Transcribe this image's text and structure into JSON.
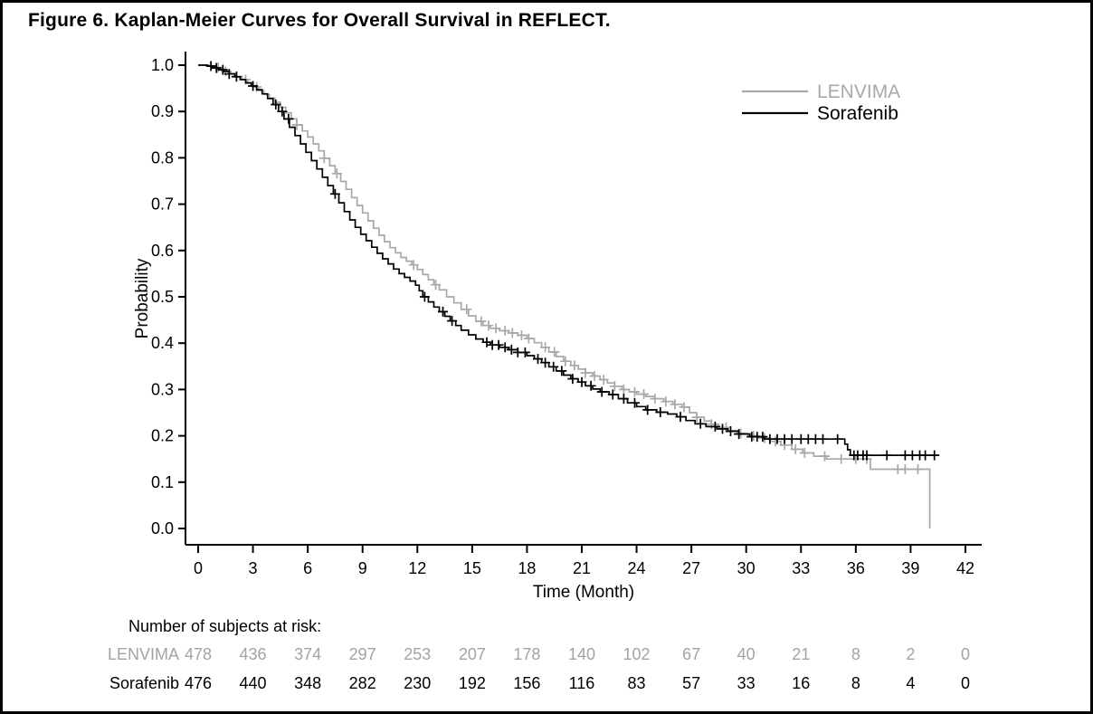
{
  "figure_title": "Figure 6. Kaplan-Meier Curves for Overall Survival in REFLECT.",
  "chart_data": {
    "type": "line",
    "subtype": "kaplan_meier_step",
    "title": "Figure 6. Kaplan-Meier Curves for Overall Survival in REFLECT.",
    "xlabel": "Time (Month)",
    "ylabel": "Probability",
    "xlim": [
      0,
      42
    ],
    "ylim": [
      0.0,
      1.0
    ],
    "grid": "off",
    "x_ticks": [
      0,
      3,
      6,
      9,
      12,
      15,
      18,
      21,
      24,
      27,
      30,
      33,
      36,
      39,
      42
    ],
    "y_tick_labels": [
      "1.0",
      "0.9",
      "0.8",
      "0.7",
      "0.6",
      "0.5",
      "0.4",
      "0.3",
      "0.2",
      "0.1",
      "0.0"
    ],
    "legend": {
      "position": "top-right",
      "entries": [
        {
          "label": "LENVIMA",
          "color": "#a8a8a8"
        },
        {
          "label": "Sorafenib",
          "color": "#000000"
        }
      ]
    },
    "series": [
      {
        "name": "LENVIMA",
        "color": "#a8a8a8",
        "steps": [
          [
            0,
            1.0
          ],
          [
            0.6,
            0.998
          ],
          [
            0.9,
            0.995
          ],
          [
            1.2,
            0.991
          ],
          [
            1.5,
            0.987
          ],
          [
            1.8,
            0.982
          ],
          [
            2.1,
            0.976
          ],
          [
            2.4,
            0.969
          ],
          [
            2.7,
            0.961
          ],
          [
            3.0,
            0.953
          ],
          [
            3.3,
            0.945
          ],
          [
            3.6,
            0.937
          ],
          [
            3.9,
            0.929
          ],
          [
            4.2,
            0.92
          ],
          [
            4.5,
            0.909
          ],
          [
            4.8,
            0.897
          ],
          [
            5.1,
            0.884
          ],
          [
            5.4,
            0.871
          ],
          [
            5.7,
            0.858
          ],
          [
            6.0,
            0.845
          ],
          [
            6.3,
            0.83
          ],
          [
            6.6,
            0.815
          ],
          [
            6.9,
            0.799
          ],
          [
            7.2,
            0.783
          ],
          [
            7.5,
            0.766
          ],
          [
            7.8,
            0.749
          ],
          [
            8.1,
            0.732
          ],
          [
            8.4,
            0.714
          ],
          [
            8.7,
            0.697
          ],
          [
            9.0,
            0.681
          ],
          [
            9.3,
            0.664
          ],
          [
            9.6,
            0.648
          ],
          [
            9.9,
            0.633
          ],
          [
            10.2,
            0.619
          ],
          [
            10.5,
            0.606
          ],
          [
            10.8,
            0.595
          ],
          [
            11.1,
            0.585
          ],
          [
            11.4,
            0.577
          ],
          [
            11.7,
            0.569
          ],
          [
            12.0,
            0.559
          ],
          [
            12.3,
            0.548
          ],
          [
            12.6,
            0.537
          ],
          [
            12.9,
            0.526
          ],
          [
            13.2,
            0.515
          ],
          [
            13.6,
            0.5
          ],
          [
            14.0,
            0.487
          ],
          [
            14.4,
            0.473
          ],
          [
            14.8,
            0.459
          ],
          [
            15.2,
            0.447
          ],
          [
            15.6,
            0.438
          ],
          [
            16.0,
            0.432
          ],
          [
            16.5,
            0.427
          ],
          [
            17.0,
            0.422
          ],
          [
            17.5,
            0.417
          ],
          [
            18.0,
            0.41
          ],
          [
            18.4,
            0.401
          ],
          [
            18.8,
            0.391
          ],
          [
            19.2,
            0.381
          ],
          [
            19.6,
            0.371
          ],
          [
            20.0,
            0.361
          ],
          [
            20.4,
            0.352
          ],
          [
            20.8,
            0.344
          ],
          [
            21.2,
            0.336
          ],
          [
            21.6,
            0.329
          ],
          [
            22.0,
            0.321
          ],
          [
            22.4,
            0.314
          ],
          [
            22.8,
            0.307
          ],
          [
            23.2,
            0.3
          ],
          [
            23.6,
            0.295
          ],
          [
            24.0,
            0.29
          ],
          [
            24.5,
            0.285
          ],
          [
            25.0,
            0.28
          ],
          [
            25.5,
            0.274
          ],
          [
            26.0,
            0.268
          ],
          [
            26.5,
            0.262
          ],
          [
            26.9,
            0.25
          ],
          [
            27.3,
            0.24
          ],
          [
            27.7,
            0.232
          ],
          [
            28.1,
            0.225
          ],
          [
            28.5,
            0.218
          ],
          [
            29.0,
            0.211
          ],
          [
            29.5,
            0.205
          ],
          [
            30.1,
            0.2
          ],
          [
            30.7,
            0.195
          ],
          [
            31.3,
            0.188
          ],
          [
            31.9,
            0.18
          ],
          [
            32.5,
            0.171
          ],
          [
            33.1,
            0.163
          ],
          [
            33.7,
            0.156
          ],
          [
            34.4,
            0.15
          ],
          [
            36.8,
            0.128
          ],
          [
            40.05,
            0.0
          ]
        ],
        "censor_marks_months": [
          1.1,
          1.5,
          2.1,
          2.6,
          3.2,
          5.4,
          6.9,
          7.6,
          11.8,
          13.0,
          14.7,
          15.5,
          15.9,
          16.3,
          16.8,
          17.2,
          17.7,
          18.1,
          19.0,
          19.5,
          20.1,
          20.6,
          21.2,
          21.7,
          22.2,
          22.8,
          23.3,
          23.9,
          24.4,
          25.0,
          25.6,
          26.1,
          26.6,
          27.3,
          28.1,
          28.9,
          29.7,
          30.4,
          31.0,
          31.6,
          32.1,
          32.7,
          33.2,
          34.3,
          35.2,
          36.0,
          36.6,
          38.3,
          38.7,
          39.4
        ]
      },
      {
        "name": "Sorafenib",
        "color": "#000000",
        "steps": [
          [
            0,
            1.0
          ],
          [
            0.5,
            0.998
          ],
          [
            0.8,
            0.994
          ],
          [
            1.1,
            0.99
          ],
          [
            1.4,
            0.986
          ],
          [
            1.7,
            0.981
          ],
          [
            2.0,
            0.975
          ],
          [
            2.3,
            0.969
          ],
          [
            2.6,
            0.962
          ],
          [
            2.9,
            0.955
          ],
          [
            3.2,
            0.947
          ],
          [
            3.5,
            0.938
          ],
          [
            3.8,
            0.928
          ],
          [
            4.1,
            0.915
          ],
          [
            4.4,
            0.9
          ],
          [
            4.7,
            0.884
          ],
          [
            5.0,
            0.866
          ],
          [
            5.3,
            0.848
          ],
          [
            5.6,
            0.83
          ],
          [
            5.9,
            0.812
          ],
          [
            6.2,
            0.794
          ],
          [
            6.5,
            0.776
          ],
          [
            6.8,
            0.758
          ],
          [
            7.1,
            0.74
          ],
          [
            7.4,
            0.722
          ],
          [
            7.7,
            0.703
          ],
          [
            8.0,
            0.684
          ],
          [
            8.3,
            0.666
          ],
          [
            8.6,
            0.65
          ],
          [
            8.9,
            0.635
          ],
          [
            9.2,
            0.621
          ],
          [
            9.5,
            0.607
          ],
          [
            9.8,
            0.594
          ],
          [
            10.1,
            0.582
          ],
          [
            10.4,
            0.571
          ],
          [
            10.7,
            0.56
          ],
          [
            11.0,
            0.55
          ],
          [
            11.3,
            0.542
          ],
          [
            11.6,
            0.534
          ],
          [
            11.9,
            0.525
          ],
          [
            12.1,
            0.513
          ],
          [
            12.3,
            0.5
          ],
          [
            12.6,
            0.489
          ],
          [
            12.9,
            0.478
          ],
          [
            13.2,
            0.468
          ],
          [
            13.5,
            0.458
          ],
          [
            13.8,
            0.448
          ],
          [
            14.1,
            0.438
          ],
          [
            14.4,
            0.428
          ],
          [
            14.8,
            0.418
          ],
          [
            15.2,
            0.409
          ],
          [
            15.6,
            0.402
          ],
          [
            16.0,
            0.396
          ],
          [
            16.5,
            0.391
          ],
          [
            17.0,
            0.386
          ],
          [
            17.5,
            0.38
          ],
          [
            18.0,
            0.373
          ],
          [
            18.4,
            0.366
          ],
          [
            18.8,
            0.358
          ],
          [
            19.2,
            0.349
          ],
          [
            19.6,
            0.34
          ],
          [
            20.0,
            0.331
          ],
          [
            20.4,
            0.323
          ],
          [
            20.8,
            0.316
          ],
          [
            21.2,
            0.308
          ],
          [
            21.6,
            0.301
          ],
          [
            22.0,
            0.295
          ],
          [
            22.5,
            0.289
          ],
          [
            23.0,
            0.28
          ],
          [
            23.5,
            0.271
          ],
          [
            24.0,
            0.263
          ],
          [
            24.5,
            0.256
          ],
          [
            25.1,
            0.251
          ],
          [
            25.7,
            0.247
          ],
          [
            26.2,
            0.241
          ],
          [
            26.7,
            0.233
          ],
          [
            27.2,
            0.226
          ],
          [
            27.8,
            0.22
          ],
          [
            28.4,
            0.215
          ],
          [
            29.0,
            0.21
          ],
          [
            29.6,
            0.204
          ],
          [
            30.2,
            0.198
          ],
          [
            31.0,
            0.193
          ],
          [
            35.4,
            0.182
          ],
          [
            35.55,
            0.17
          ],
          [
            35.7,
            0.158
          ],
          [
            40.5,
            0.158
          ]
        ],
        "censor_marks_months": [
          0.7,
          1.0,
          1.35,
          1.7,
          2.1,
          3.0,
          4.25,
          4.6,
          4.95,
          7.5,
          12.4,
          13.4,
          13.9,
          15.8,
          16.1,
          16.45,
          16.8,
          17.15,
          17.5,
          17.9,
          18.6,
          19.0,
          19.45,
          19.9,
          20.5,
          21.0,
          21.5,
          22.1,
          22.7,
          23.3,
          23.9,
          24.6,
          25.3,
          26.4,
          27.5,
          28.3,
          28.7,
          29.15,
          29.6,
          30.3,
          30.6,
          30.9,
          31.3,
          31.7,
          32.1,
          32.5,
          33.0,
          33.4,
          33.8,
          34.2,
          35.0,
          35.9,
          36.1,
          36.4,
          36.6,
          37.7,
          38.7,
          39.1,
          39.5,
          39.8,
          40.3
        ]
      }
    ]
  },
  "risk_table": {
    "heading": "Number of subjects at risk:",
    "time_points": [
      0,
      3,
      6,
      9,
      12,
      15,
      18,
      21,
      24,
      27,
      30,
      33,
      36,
      39,
      42
    ],
    "rows": [
      {
        "label": "LENVIMA",
        "color": "#a3a3a3",
        "values": [
          478,
          436,
          374,
          297,
          253,
          207,
          178,
          140,
          102,
          67,
          40,
          21,
          8,
          2,
          0
        ]
      },
      {
        "label": "Sorafenib",
        "color": "#000000",
        "values": [
          476,
          440,
          348,
          282,
          230,
          192,
          156,
          116,
          83,
          57,
          33,
          16,
          8,
          4,
          0
        ]
      }
    ]
  }
}
